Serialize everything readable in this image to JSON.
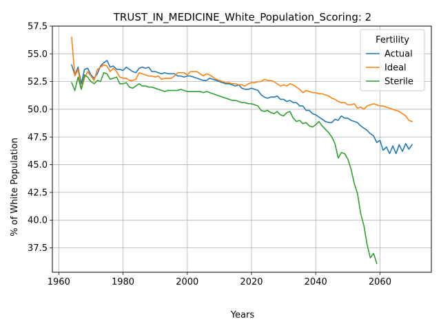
{
  "chart_data": {
    "type": "line",
    "title": "TRUST_IN_MEDICINE_White_Population_Scoring: 2",
    "xlabel": "Years",
    "ylabel": "% of White Population",
    "xlim": [
      1958,
      2076
    ],
    "ylim": [
      35.3,
      57.5
    ],
    "xticks": [
      1960,
      1980,
      2000,
      2020,
      2040,
      2060
    ],
    "yticks": [
      37.5,
      40.0,
      42.5,
      45.0,
      47.5,
      50.0,
      52.5,
      55.0,
      57.5
    ],
    "grid": true,
    "legend": {
      "title": "Fertility",
      "placement": "top-right"
    },
    "series": [
      {
        "name": "Actual",
        "color": "#1f77b4",
        "x": [
          1964,
          1965,
          1966,
          1967,
          1968,
          1969,
          1970,
          1971,
          1972,
          1973,
          1974,
          1975,
          1976,
          1977,
          1978,
          1979,
          1980,
          1981,
          1982,
          1983,
          1984,
          1985,
          1986,
          1987,
          1988,
          1989,
          1990,
          1991,
          1992,
          1993,
          1994,
          1995,
          1996,
          1997,
          1998,
          1999,
          2000,
          2001,
          2002,
          2003,
          2004,
          2005,
          2006,
          2007,
          2008,
          2009,
          2010,
          2011,
          2012,
          2013,
          2014,
          2015,
          2016,
          2017,
          2018,
          2019,
          2020,
          2021,
          2022,
          2023,
          2024,
          2025,
          2026,
          2027,
          2028,
          2029,
          2030,
          2031,
          2032,
          2033,
          2034,
          2035,
          2036,
          2037,
          2038,
          2039,
          2040,
          2041,
          2042,
          2043,
          2044,
          2045,
          2046,
          2047,
          2048,
          2049,
          2050,
          2051,
          2052,
          2053,
          2054,
          2055,
          2056,
          2057,
          2058,
          2059,
          2060,
          2061,
          2062,
          2063,
          2064,
          2065,
          2066,
          2067,
          2068,
          2069,
          2070
        ],
        "values": [
          54.0,
          53.1,
          53.8,
          52.3,
          53.6,
          53.7,
          53.1,
          52.8,
          53.2,
          53.9,
          54.2,
          54.4,
          53.8,
          53.9,
          53.6,
          53.6,
          53.5,
          53.8,
          53.6,
          53.4,
          53.3,
          53.7,
          53.8,
          53.7,
          53.8,
          53.4,
          53.4,
          53.3,
          53.2,
          53.3,
          53.2,
          53.2,
          53.2,
          53.0,
          53.0,
          52.9,
          53.0,
          53.0,
          52.9,
          52.8,
          52.7,
          52.6,
          52.6,
          52.8,
          52.7,
          52.6,
          52.5,
          52.4,
          52.3,
          52.3,
          52.2,
          52.1,
          52.2,
          51.9,
          51.8,
          51.8,
          51.9,
          51.8,
          51.7,
          51.3,
          51.1,
          51.0,
          51.1,
          51.1,
          51.2,
          50.9,
          50.9,
          50.7,
          50.8,
          50.6,
          50.6,
          50.3,
          50.3,
          49.9,
          49.9,
          49.6,
          49.5,
          49.3,
          49.1,
          48.9,
          48.8,
          48.8,
          49.1,
          49.0,
          49.4,
          49.2,
          49.2,
          49.0,
          48.9,
          48.8,
          48.5,
          48.3,
          48.1,
          47.8,
          47.6,
          47.0,
          47.2,
          46.3,
          46.6,
          46.0,
          46.7,
          46.0,
          46.8,
          46.2,
          46.9,
          46.4,
          46.8
        ]
      },
      {
        "name": "Ideal",
        "color": "#ff7f0e",
        "x": [
          1964,
          1965,
          1966,
          1967,
          1968,
          1969,
          1970,
          1971,
          1972,
          1973,
          1974,
          1975,
          1976,
          1977,
          1978,
          1979,
          1980,
          1981,
          1982,
          1983,
          1984,
          1985,
          1986,
          1987,
          1988,
          1989,
          1990,
          1991,
          1992,
          1993,
          1994,
          1995,
          1996,
          1997,
          1998,
          1999,
          2000,
          2001,
          2002,
          2003,
          2004,
          2005,
          2006,
          2007,
          2008,
          2009,
          2010,
          2011,
          2012,
          2013,
          2014,
          2015,
          2016,
          2017,
          2018,
          2019,
          2020,
          2021,
          2022,
          2023,
          2024,
          2025,
          2026,
          2027,
          2028,
          2029,
          2030,
          2031,
          2032,
          2033,
          2034,
          2035,
          2036,
          2037,
          2038,
          2039,
          2040,
          2041,
          2042,
          2043,
          2044,
          2045,
          2046,
          2047,
          2048,
          2049,
          2050,
          2051,
          2052,
          2053,
          2054,
          2055,
          2056,
          2057,
          2058,
          2059,
          2060,
          2061,
          2062,
          2063,
          2064,
          2065,
          2066,
          2067,
          2068,
          2069,
          2070
        ],
        "values": [
          56.5,
          53.0,
          53.6,
          51.8,
          52.8,
          53.4,
          53.0,
          52.6,
          53.6,
          53.8,
          54.0,
          53.9,
          53.4,
          53.7,
          53.4,
          52.9,
          52.8,
          52.8,
          52.6,
          52.6,
          52.7,
          53.3,
          53.2,
          53.1,
          53.0,
          53.0,
          52.9,
          53.0,
          52.7,
          52.8,
          52.8,
          52.8,
          53.0,
          53.3,
          53.3,
          53.3,
          53.1,
          53.4,
          53.4,
          53.4,
          53.2,
          53.0,
          53.2,
          53.1,
          52.9,
          52.7,
          52.6,
          52.5,
          52.4,
          52.4,
          52.3,
          52.3,
          52.2,
          52.2,
          52.1,
          52.3,
          52.4,
          52.4,
          52.5,
          52.5,
          52.7,
          52.6,
          52.6,
          52.5,
          52.3,
          52.1,
          52.2,
          52.1,
          52.3,
          52.2,
          52.0,
          51.8,
          51.5,
          51.7,
          51.6,
          51.5,
          51.5,
          51.4,
          51.4,
          51.3,
          51.2,
          51.0,
          50.9,
          50.7,
          50.6,
          50.6,
          50.4,
          50.4,
          50.5,
          50.1,
          50.2,
          50.0,
          50.3,
          50.4,
          50.5,
          50.4,
          50.3,
          50.3,
          50.2,
          50.1,
          50.0,
          49.9,
          49.8,
          49.6,
          49.4,
          49.0,
          48.9
        ]
      },
      {
        "name": "Sterile",
        "color": "#2ca02c",
        "x": [
          1964,
          1965,
          1966,
          1967,
          1968,
          1969,
          1970,
          1971,
          1972,
          1973,
          1974,
          1975,
          1976,
          1977,
          1978,
          1979,
          1980,
          1981,
          1982,
          1983,
          1984,
          1985,
          1986,
          1987,
          1988,
          1989,
          1990,
          1991,
          1992,
          1993,
          1994,
          1995,
          1996,
          1997,
          1998,
          1999,
          2000,
          2001,
          2002,
          2003,
          2004,
          2005,
          2006,
          2007,
          2008,
          2009,
          2010,
          2011,
          2012,
          2013,
          2014,
          2015,
          2016,
          2017,
          2018,
          2019,
          2020,
          2021,
          2022,
          2023,
          2024,
          2025,
          2026,
          2027,
          2028,
          2029,
          2030,
          2031,
          2032,
          2033,
          2034,
          2035,
          2036,
          2037,
          2038,
          2039,
          2040,
          2041,
          2042,
          2043,
          2044,
          2045,
          2046,
          2047,
          2048,
          2049,
          2050,
          2051,
          2052,
          2053,
          2054,
          2055,
          2056,
          2057,
          2058,
          2059
        ],
        "values": [
          52.4,
          51.7,
          52.9,
          51.8,
          53.1,
          52.9,
          52.5,
          52.3,
          52.6,
          52.5,
          53.3,
          53.2,
          52.7,
          52.8,
          52.9,
          52.3,
          52.3,
          52.4,
          52.0,
          51.9,
          52.1,
          52.3,
          52.1,
          52.1,
          52.0,
          52.0,
          51.9,
          51.8,
          51.7,
          51.6,
          51.7,
          51.7,
          51.7,
          51.7,
          51.8,
          51.7,
          51.6,
          51.6,
          51.6,
          51.6,
          51.6,
          51.5,
          51.6,
          51.5,
          51.4,
          51.3,
          51.2,
          51.1,
          51.0,
          50.9,
          50.8,
          50.8,
          50.7,
          50.6,
          50.6,
          50.5,
          50.5,
          50.4,
          50.3,
          49.9,
          49.8,
          49.9,
          49.7,
          49.6,
          49.8,
          49.5,
          49.4,
          49.7,
          49.8,
          49.2,
          48.9,
          49.0,
          48.7,
          48.8,
          48.5,
          48.4,
          48.6,
          48.9,
          48.5,
          48.2,
          47.9,
          47.5,
          46.9,
          45.6,
          46.1,
          46.0,
          45.5,
          44.6,
          43.3,
          42.4,
          40.6,
          39.5,
          37.8,
          36.6,
          37.0,
          36.1
        ]
      }
    ]
  }
}
